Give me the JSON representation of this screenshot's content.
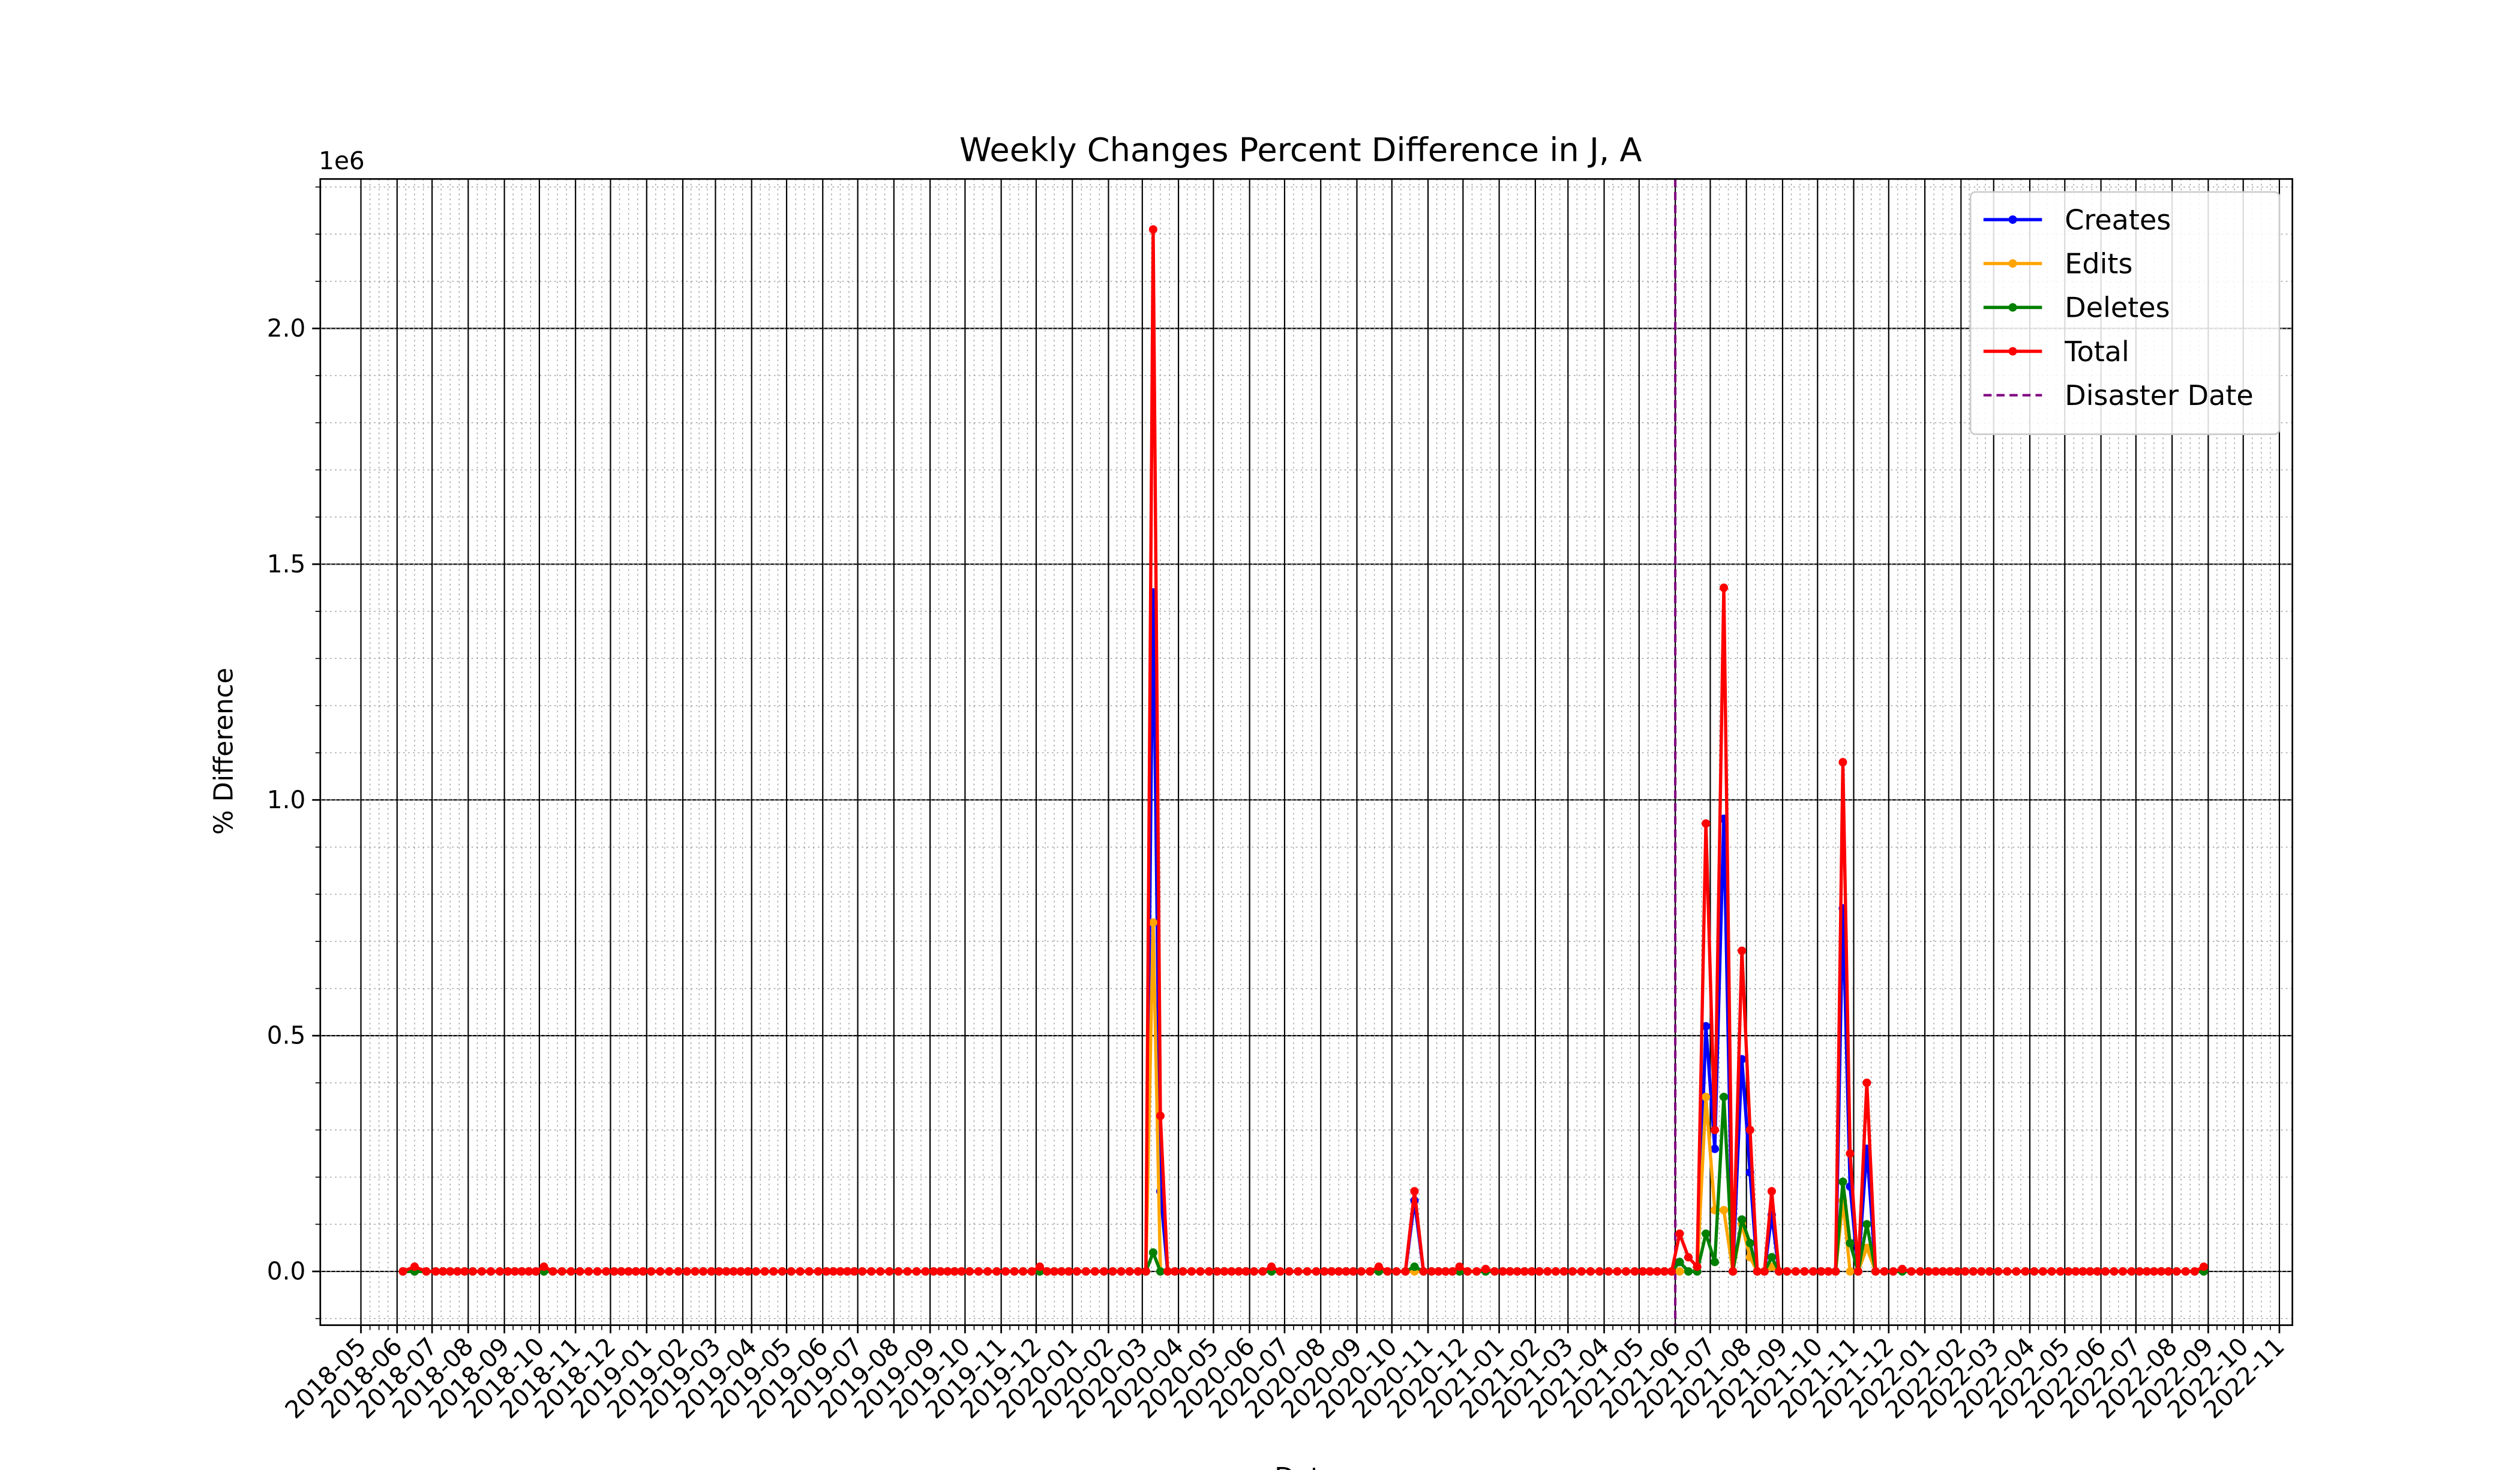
{
  "chart_data": {
    "type": "line",
    "title": "Weekly Changes Percent Difference in J, A",
    "xlabel": "Date",
    "ylabel": "% Difference",
    "y_offset_label": "1e6",
    "x": [
      "2018-06",
      "2018-06",
      "2018-06",
      "2018-07",
      "2018-07",
      "2018-07",
      "2018-07",
      "2018-07",
      "2018-08",
      "2018-08",
      "2018-08",
      "2018-08",
      "2018-09",
      "2018-09",
      "2018-09",
      "2018-09",
      "2018-09",
      "2018-10",
      "2018-10",
      "2018-10",
      "2018-10",
      "2018-11",
      "2018-11",
      "2018-11",
      "2018-11",
      "2018-12",
      "2018-12",
      "2018-12",
      "2018-12",
      "2018-12",
      "2019-01",
      "2019-01",
      "2019-01",
      "2019-01",
      "2019-02",
      "2019-02",
      "2019-02",
      "2019-02",
      "2019-03",
      "2019-03",
      "2019-03",
      "2019-03",
      "2019-03",
      "2019-04",
      "2019-04",
      "2019-04",
      "2019-04",
      "2019-05",
      "2019-05",
      "2019-05",
      "2019-05",
      "2019-06",
      "2019-06",
      "2019-06",
      "2019-06",
      "2019-06",
      "2019-07",
      "2019-07",
      "2019-07",
      "2019-07",
      "2019-08",
      "2019-08",
      "2019-08",
      "2019-08",
      "2019-09",
      "2019-09",
      "2019-09",
      "2019-09",
      "2019-09",
      "2019-10",
      "2019-10",
      "2019-10",
      "2019-10",
      "2019-11",
      "2019-11",
      "2019-11",
      "2019-11",
      "2019-12",
      "2019-12",
      "2019-12",
      "2019-12",
      "2019-12",
      "2020-01",
      "2020-01",
      "2020-01",
      "2020-01",
      "2020-02",
      "2020-02",
      "2020-02",
      "2020-02",
      "2020-03",
      "2020-03",
      "2020-03",
      "2020-03",
      "2020-03",
      "2020-04",
      "2020-04",
      "2020-04",
      "2020-04",
      "2020-05",
      "2020-05",
      "2020-05",
      "2020-05",
      "2020-05",
      "2020-06",
      "2020-06",
      "2020-06",
      "2020-06",
      "2020-07",
      "2020-07",
      "2020-07",
      "2020-07",
      "2020-08",
      "2020-08",
      "2020-08",
      "2020-08",
      "2020-08",
      "2020-09",
      "2020-09",
      "2020-09",
      "2020-09",
      "2020-10",
      "2020-10",
      "2020-10",
      "2020-10",
      "2020-11",
      "2020-11",
      "2020-11",
      "2020-11",
      "2020-11",
      "2020-12",
      "2020-12",
      "2020-12",
      "2020-12",
      "2021-01",
      "2021-01",
      "2021-01",
      "2021-01",
      "2021-01",
      "2021-02",
      "2021-02",
      "2021-02",
      "2021-02",
      "2021-03",
      "2021-03",
      "2021-03",
      "2021-03",
      "2021-04",
      "2021-04",
      "2021-04",
      "2021-04",
      "2021-05",
      "2021-05",
      "2021-05",
      "2021-05",
      "2021-05",
      "2021-06",
      "2021-06",
      "2021-06",
      "2021-06",
      "2021-07",
      "2021-07",
      "2021-07",
      "2021-07",
      "2021-08",
      "2021-08",
      "2021-08",
      "2021-08",
      "2021-08",
      "2021-09",
      "2021-09",
      "2021-09",
      "2021-09",
      "2021-10",
      "2021-10",
      "2021-10",
      "2021-10",
      "2021-10",
      "2021-11",
      "2021-11",
      "2021-11",
      "2021-11",
      "2021-12",
      "2021-12",
      "2021-12",
      "2021-12",
      "2022-01",
      "2022-01",
      "2022-01",
      "2022-01",
      "2022-01",
      "2022-02",
      "2022-02",
      "2022-02",
      "2022-02",
      "2022-03",
      "2022-03",
      "2022-03",
      "2022-03",
      "2022-04",
      "2022-04",
      "2022-04",
      "2022-04",
      "2022-05",
      "2022-05",
      "2022-05",
      "2022-05",
      "2022-05",
      "2022-06",
      "2022-06",
      "2022-06",
      "2022-06",
      "2022-07",
      "2022-07",
      "2022-07",
      "2022-07",
      "2022-07",
      "2022-08",
      "2022-08",
      "2022-08",
      "2022-08"
    ],
    "series": [
      {
        "name": "Creates",
        "color": "#0000ff",
        "values": [
          0,
          0,
          0,
          0,
          0,
          0,
          0,
          0,
          0,
          0,
          0,
          0,
          0,
          0,
          0,
          0,
          0,
          0,
          0,
          0,
          0,
          0,
          0,
          0,
          0,
          0,
          0,
          0,
          0,
          0,
          0,
          0,
          0,
          0,
          0,
          0,
          0,
          0,
          0,
          0,
          0,
          0,
          0,
          0,
          0,
          0,
          0,
          0,
          0,
          0,
          0,
          0,
          0,
          0,
          0,
          0,
          0,
          0,
          0,
          0,
          0,
          0,
          0,
          0,
          0,
          0,
          0,
          0,
          0,
          0,
          0,
          0,
          0,
          0,
          0,
          0,
          0,
          0,
          0,
          0,
          0,
          0,
          0,
          0,
          0,
          0,
          0,
          0,
          0,
          0,
          0,
          1.44,
          0.17,
          0,
          0,
          0,
          0,
          0,
          0,
          0,
          0,
          0,
          0,
          0,
          0,
          0,
          0,
          0,
          0,
          0,
          0,
          0,
          0,
          0,
          0,
          0,
          0,
          0,
          0,
          0,
          0,
          0,
          0,
          0.15,
          0,
          0,
          0,
          0,
          0,
          0,
          0,
          0,
          0,
          0,
          0,
          0,
          0,
          0,
          0,
          0,
          0,
          0,
          0,
          0,
          0,
          0,
          0,
          0,
          0,
          0,
          0,
          0,
          0,
          0,
          0,
          0,
          0.02,
          0,
          0,
          0.52,
          0.26,
          0.96,
          0,
          0.45,
          0.21,
          0,
          0,
          0.12,
          0,
          0,
          0,
          0,
          0,
          0,
          0,
          0,
          0.77,
          0.18,
          0,
          0.26,
          0,
          0,
          0,
          0,
          0,
          0,
          0,
          0,
          0,
          0,
          0,
          0,
          0,
          0,
          0,
          0,
          0,
          0,
          0,
          0,
          0,
          0,
          0,
          0,
          0,
          0,
          0,
          0,
          0,
          0,
          0,
          0,
          0,
          0,
          0,
          0,
          0,
          0,
          0,
          0,
          0
        ]
      },
      {
        "name": "Edits",
        "color": "#ffa500",
        "values": [
          0,
          0,
          0,
          0,
          0,
          0,
          0,
          0,
          0,
          0,
          0,
          0,
          0,
          0,
          0,
          0,
          0,
          0,
          0,
          0,
          0,
          0,
          0,
          0,
          0,
          0,
          0,
          0,
          0,
          0,
          0,
          0,
          0,
          0,
          0,
          0,
          0,
          0,
          0,
          0,
          0,
          0,
          0,
          0,
          0,
          0,
          0,
          0,
          0,
          0,
          0,
          0,
          0,
          0,
          0,
          0,
          0,
          0,
          0,
          0,
          0,
          0,
          0,
          0,
          0,
          0,
          0,
          0,
          0,
          0,
          0,
          0,
          0,
          0,
          0,
          0,
          0,
          0,
          0,
          0,
          0,
          0,
          0,
          0,
          0,
          0,
          0,
          0,
          0,
          0,
          0,
          0.74,
          0,
          0,
          0,
          0,
          0,
          0,
          0,
          0,
          0,
          0,
          0,
          0,
          0,
          0,
          0,
          0,
          0,
          0,
          0,
          0,
          0,
          0,
          0,
          0,
          0,
          0,
          0,
          0,
          0,
          0,
          0,
          0,
          0,
          0,
          0,
          0,
          0,
          0,
          0,
          0,
          0,
          0,
          0,
          0,
          0,
          0,
          0,
          0,
          0,
          0,
          0,
          0,
          0,
          0,
          0,
          0,
          0,
          0,
          0,
          0,
          0,
          0,
          0,
          0,
          0,
          0,
          0,
          0.37,
          0.13,
          0.13,
          0,
          0.1,
          0.03,
          0,
          0,
          0.01,
          0,
          0,
          0,
          0,
          0,
          0,
          0,
          0,
          0.15,
          0,
          0,
          0.05,
          0,
          0,
          0,
          0,
          0,
          0,
          0,
          0,
          0,
          0,
          0,
          0,
          0,
          0,
          0,
          0,
          0,
          0,
          0,
          0,
          0,
          0,
          0,
          0,
          0,
          0,
          0,
          0,
          0,
          0,
          0,
          0,
          0,
          0,
          0,
          0,
          0,
          0,
          0,
          0,
          0
        ]
      },
      {
        "name": "Deletes",
        "color": "#008000",
        "values": [
          0,
          0,
          0,
          0,
          0,
          0,
          0,
          0,
          0,
          0,
          0,
          0,
          0,
          0,
          0,
          0,
          0,
          0,
          0,
          0,
          0,
          0,
          0,
          0,
          0,
          0,
          0,
          0,
          0,
          0,
          0,
          0,
          0,
          0,
          0,
          0,
          0,
          0,
          0,
          0,
          0,
          0,
          0,
          0,
          0,
          0,
          0,
          0,
          0,
          0,
          0,
          0,
          0,
          0,
          0,
          0,
          0,
          0,
          0,
          0,
          0,
          0,
          0,
          0,
          0,
          0,
          0,
          0,
          0,
          0,
          0,
          0,
          0,
          0,
          0,
          0,
          0,
          0,
          0,
          0,
          0,
          0,
          0,
          0,
          0,
          0,
          0,
          0,
          0,
          0,
          0,
          0.04,
          0,
          0,
          0,
          0,
          0,
          0,
          0,
          0,
          0,
          0,
          0,
          0,
          0,
          0,
          0,
          0,
          0,
          0,
          0,
          0,
          0,
          0,
          0,
          0,
          0,
          0,
          0,
          0,
          0,
          0,
          0,
          0.01,
          0,
          0,
          0,
          0,
          0,
          0,
          0,
          0,
          0,
          0,
          0,
          0,
          0,
          0,
          0,
          0,
          0,
          0,
          0,
          0,
          0,
          0,
          0,
          0,
          0,
          0,
          0,
          0,
          0,
          0,
          0,
          0,
          0.02,
          0,
          0,
          0.08,
          0.02,
          0.37,
          0,
          0.11,
          0.06,
          0,
          0,
          0.03,
          0,
          0,
          0,
          0,
          0,
          0,
          0,
          0,
          0.19,
          0.06,
          0,
          0.1,
          0,
          0,
          0,
          0,
          0,
          0,
          0,
          0,
          0,
          0,
          0,
          0,
          0,
          0,
          0,
          0,
          0,
          0,
          0,
          0,
          0,
          0,
          0,
          0,
          0,
          0,
          0,
          0,
          0,
          0,
          0,
          0,
          0,
          0,
          0,
          0,
          0,
          0,
          0,
          0,
          0
        ]
      },
      {
        "name": "Total",
        "color": "#ff0000",
        "values": [
          0,
          0.01,
          0,
          0,
          0,
          0,
          0,
          0,
          0,
          0,
          0,
          0,
          0,
          0,
          0,
          0,
          0,
          0.01,
          0,
          0,
          0,
          0,
          0,
          0,
          0,
          0,
          0,
          0,
          0,
          0,
          0,
          0,
          0,
          0,
          0,
          0,
          0,
          0,
          0,
          0,
          0,
          0,
          0,
          0,
          0,
          0,
          0,
          0,
          0,
          0,
          0,
          0,
          0,
          0,
          0,
          0,
          0,
          0,
          0,
          0,
          0,
          0,
          0,
          0,
          0,
          0,
          0,
          0,
          0,
          0,
          0,
          0,
          0,
          0,
          0,
          0,
          0,
          0.01,
          0,
          0,
          0,
          0,
          0,
          0,
          0,
          0,
          0,
          0,
          0,
          0,
          0,
          2.21,
          0.33,
          0,
          0,
          0,
          0,
          0,
          0,
          0,
          0,
          0,
          0,
          0,
          0,
          0,
          0.01,
          0,
          0,
          0,
          0,
          0,
          0,
          0,
          0,
          0,
          0,
          0,
          0,
          0.01,
          0,
          0,
          0,
          0.17,
          0,
          0,
          0,
          0,
          0,
          0.01,
          0,
          0,
          0.005,
          0,
          0,
          0,
          0,
          0,
          0,
          0,
          0,
          0,
          0,
          0,
          0,
          0,
          0,
          0,
          0,
          0,
          0,
          0,
          0,
          0,
          0,
          0,
          0.08,
          0.03,
          0.01,
          0.95,
          0.3,
          1.45,
          0,
          0.68,
          0.3,
          0,
          0,
          0.17,
          0,
          0,
          0,
          0,
          0,
          0,
          0,
          0,
          1.08,
          0.25,
          0,
          0.4,
          0,
          0,
          0,
          0.005,
          0,
          0,
          0,
          0,
          0,
          0,
          0,
          0,
          0,
          0,
          0,
          0,
          0,
          0,
          0,
          0,
          0,
          0,
          0,
          0,
          0,
          0,
          0,
          0,
          0,
          0,
          0,
          0,
          0,
          0,
          0,
          0,
          0,
          0,
          0,
          0,
          0.01
        ]
      }
    ],
    "disaster": {
      "name": "Disaster Date",
      "x": "2021-06",
      "color": "#800080"
    },
    "xlim": [
      "2018-05",
      "2022-11"
    ],
    "xticks": [
      "2018-05",
      "2018-06",
      "2018-07",
      "2018-08",
      "2018-09",
      "2018-10",
      "2018-11",
      "2018-12",
      "2019-01",
      "2019-02",
      "2019-03",
      "2019-04",
      "2019-05",
      "2019-06",
      "2019-07",
      "2019-08",
      "2019-09",
      "2019-10",
      "2019-11",
      "2019-12",
      "2020-01",
      "2020-02",
      "2020-03",
      "2020-04",
      "2020-05",
      "2020-06",
      "2020-07",
      "2020-08",
      "2020-09",
      "2020-10",
      "2020-11",
      "2020-12",
      "2021-01",
      "2021-02",
      "2021-03",
      "2021-04",
      "2021-05",
      "2021-06",
      "2021-07",
      "2021-08",
      "2021-09",
      "2021-10",
      "2021-11",
      "2021-12",
      "2022-01",
      "2022-02",
      "2022-03",
      "2022-04",
      "2022-05",
      "2022-06",
      "2022-07",
      "2022-08",
      "2022-09",
      "2022-10",
      "2022-11"
    ],
    "ylim": [
      -0.114,
      2.317
    ],
    "yticks": [
      {
        "value": 0,
        "label": "0.0"
      },
      0.5,
      {
        "value": 1,
        "label": "1.0"
      },
      1.5,
      {
        "value": 2,
        "label": "2.0"
      }
    ],
    "grid": true,
    "minor_grid": true,
    "legend": "upper right"
  }
}
